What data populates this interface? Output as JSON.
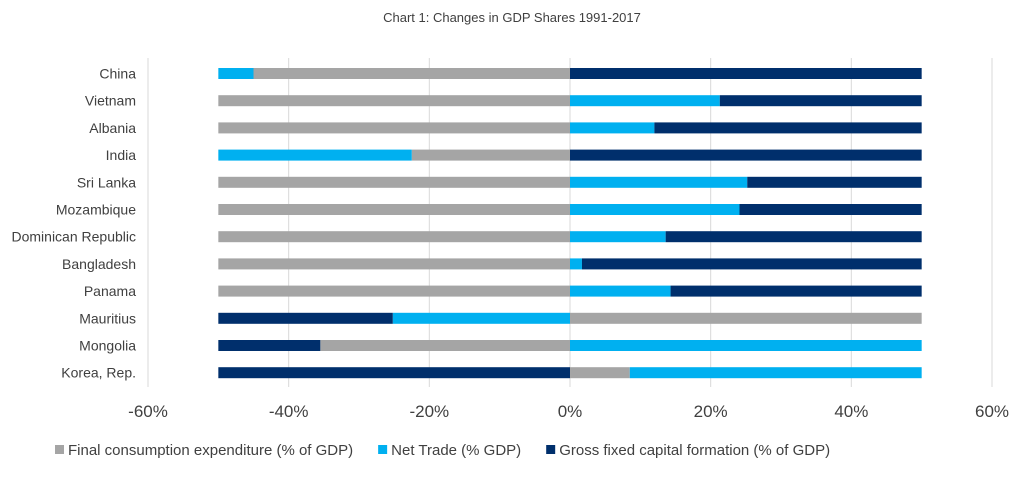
{
  "chart_data": {
    "type": "bar",
    "orientation": "horizontal",
    "stacking": "diverging-stacked",
    "title": "Chart 1: Changes in GDP Shares 1991-2017",
    "xlabel": "",
    "ylabel": "",
    "xlim": [
      -60,
      60
    ],
    "x_ticks": [
      -60,
      -40,
      -20,
      0,
      20,
      40,
      60
    ],
    "x_tick_labels": [
      "-60%",
      "-40%",
      "-20%",
      "0%",
      "20%",
      "40%",
      "60%"
    ],
    "grid": "vertical",
    "legend_position": "bottom",
    "categories": [
      "China",
      "Vietnam",
      "Albania",
      "India",
      "Sri Lanka",
      "Mozambique",
      "Dominican Republic",
      "Bangladesh",
      "Panama",
      "Mauritius",
      "Mongolia",
      "Korea, Rep."
    ],
    "series": [
      {
        "name": "Final consumption expenditure (% of GDP)",
        "color": "#a5a5a5",
        "values": [
          -45,
          -50,
          -50,
          -22.5,
          -50,
          -50,
          -50,
          -50,
          -50,
          50,
          -35.5,
          8.5
        ]
      },
      {
        "name": "Net Trade (% GDP)",
        "color": "#00b0f0",
        "values": [
          -5,
          21.3,
          12,
          -27.5,
          25.2,
          24.1,
          13.6,
          1.7,
          14.3,
          -25.2,
          50,
          41.5
        ]
      },
      {
        "name": "Gross fixed capital formation (% of GDP)",
        "color": "#002f6c",
        "values": [
          50,
          28.7,
          38,
          50,
          24.8,
          25.9,
          36.4,
          48.3,
          35.7,
          -24.8,
          -14.5,
          -50
        ]
      }
    ]
  }
}
